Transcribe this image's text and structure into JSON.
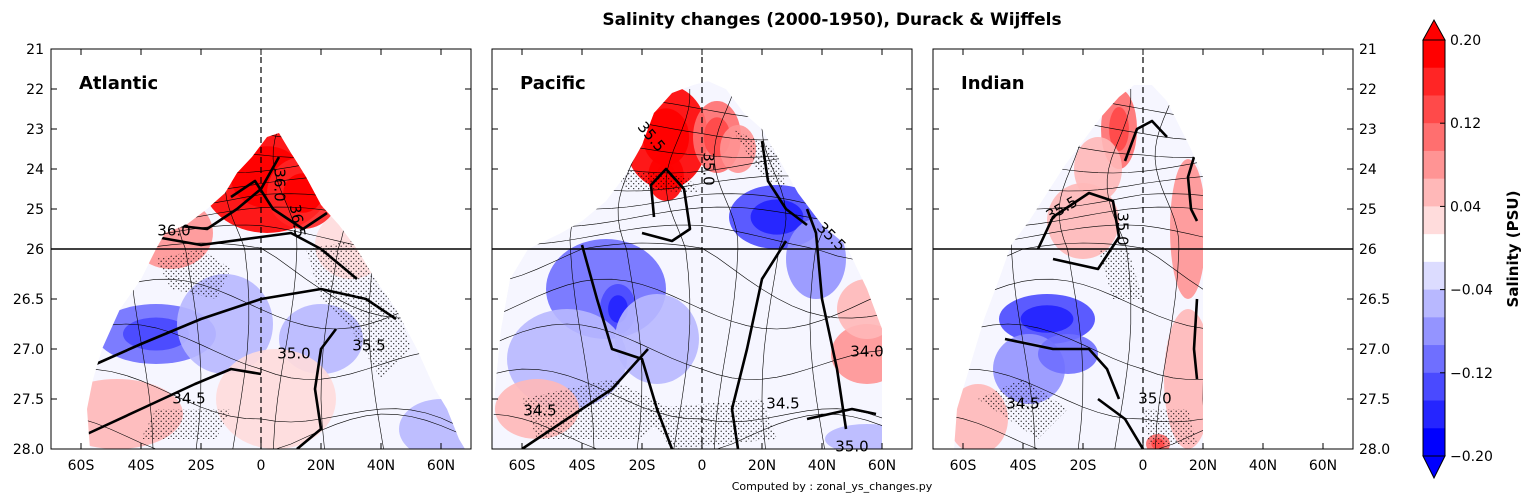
{
  "chart_data": {
    "type": "contour",
    "title": "Salinity changes (2000-1950), Durack & Wijffels",
    "footnote": "Computed by : zonal_ys_changes.py",
    "xaxis": {
      "range": [
        -70,
        70
      ],
      "ticks": [
        -60,
        -40,
        -20,
        0,
        20,
        40,
        60
      ],
      "tick_labels": [
        "60S",
        "40S",
        "20S",
        "0",
        "20N",
        "40N",
        "60N"
      ]
    },
    "yaxis": {
      "inverted": true,
      "split_at": 26,
      "upper_range": [
        21,
        26
      ],
      "lower_range": [
        26,
        28
      ],
      "ticks": [
        21,
        22,
        23,
        24,
        25,
        26,
        26.5,
        27,
        27.5,
        28
      ],
      "tick_labels": [
        "21",
        "22",
        "23",
        "24",
        "25",
        "26",
        "26.5",
        "27.0",
        "27.5",
        "28.0"
      ]
    },
    "colorbar": {
      "label": "Salinity (PSU)",
      "range": [
        -0.2,
        0.2
      ],
      "tick_values": [
        0.2,
        0.12,
        0.04,
        -0.04,
        -0.12,
        -0.2
      ],
      "tick_labels": [
        "0.20",
        "0.12",
        "0.04",
        "−0.04",
        "−0.12",
        "−0.20"
      ],
      "colors": [
        "#ff0000",
        "#ff2525",
        "#ff4a4a",
        "#ff6f6f",
        "#ff9494",
        "#ffb8b8",
        "#ffdcdc",
        "#ffffff",
        "#dcdcff",
        "#b8b8ff",
        "#9494ff",
        "#6f6fff",
        "#4a4aff",
        "#2525ff",
        "#0000ff"
      ]
    },
    "panels": [
      {
        "name": "Atlantic",
        "contour_labels": [
          {
            "text": "36.0",
            "x": -29,
            "y": 25.55
          },
          {
            "text": "36.0",
            "x": 6,
            "y": 24.4,
            "rot": 90
          },
          {
            "text": "36.5",
            "x": 12,
            "y": 25.3,
            "rot": 80
          },
          {
            "text": "35.0",
            "x": 11,
            "y": 27.05
          },
          {
            "text": "35.5",
            "x": 36,
            "y": 26.97
          },
          {
            "text": "34.5",
            "x": -24,
            "y": 27.5
          }
        ],
        "anomalies": [
          {
            "x": 2,
            "y": 24.2,
            "rx": 22,
            "ry": 1.4,
            "v": 0.2
          },
          {
            "x": 14,
            "y": 24.6,
            "rx": 12,
            "ry": 0.9,
            "v": 0.16
          },
          {
            "x": -30,
            "y": 25.6,
            "rx": 14,
            "ry": 0.6,
            "v": 0.1
          },
          {
            "x": -35,
            "y": 26.85,
            "rx": 20,
            "ry": 0.3,
            "v": -0.12
          },
          {
            "x": -12,
            "y": 26.75,
            "rx": 16,
            "ry": 0.5,
            "v": -0.06
          },
          {
            "x": 20,
            "y": 26.9,
            "rx": 14,
            "ry": 0.35,
            "v": -0.05
          },
          {
            "x": -48,
            "y": 27.65,
            "rx": 22,
            "ry": 0.35,
            "v": 0.06
          },
          {
            "x": 5,
            "y": 27.5,
            "rx": 20,
            "ry": 0.5,
            "v": 0.04
          },
          {
            "x": 60,
            "y": 27.8,
            "rx": 14,
            "ry": 0.3,
            "v": -0.07
          },
          {
            "x": 30,
            "y": 25.9,
            "rx": 12,
            "ry": 0.4,
            "v": 0.04
          }
        ],
        "thick_contours": [
          [
            [
              -58,
              27.85
            ],
            [
              -40,
              27.6
            ],
            [
              -22,
              27.35
            ],
            [
              -10,
              27.2
            ],
            [
              0,
              27.25
            ]
          ],
          [
            [
              -55,
              27.15
            ],
            [
              -40,
              26.95
            ],
            [
              -20,
              26.7
            ],
            [
              0,
              26.5
            ],
            [
              20,
              26.4
            ],
            [
              35,
              26.5
            ],
            [
              45,
              26.7
            ]
          ],
          [
            [
              -35,
              25.7
            ],
            [
              -20,
              25.9
            ],
            [
              0,
              25.7
            ],
            [
              10,
              25.6
            ],
            [
              20,
              26.0
            ],
            [
              32,
              26.3
            ]
          ],
          [
            [
              -30,
              25.4
            ],
            [
              -18,
              25.5
            ],
            [
              -8,
              25.0
            ],
            [
              0,
              24.5
            ],
            [
              6,
              23.7
            ]
          ],
          [
            [
              12,
              28.0
            ],
            [
              20,
              27.8
            ],
            [
              18,
              27.4
            ],
            [
              20,
              27.0
            ],
            [
              25,
              26.8
            ]
          ],
          [
            [
              -10,
              24.7
            ],
            [
              -2,
              24.3
            ],
            [
              4,
              25.0
            ],
            [
              14,
              25.5
            ],
            [
              22,
              25.1
            ]
          ]
        ]
      },
      {
        "name": "Pacific",
        "contour_labels": [
          {
            "text": "35.5",
            "x": -17,
            "y": 23.2,
            "rot": 50
          },
          {
            "text": "35.0",
            "x": 2,
            "y": 24.0,
            "rot": 90
          },
          {
            "text": "35.5",
            "x": 43,
            "y": 25.7,
            "rot": 45
          },
          {
            "text": "34.0",
            "x": 55,
            "y": 27.03
          },
          {
            "text": "34.5",
            "x": 27,
            "y": 27.55
          },
          {
            "text": "34.5",
            "x": -54,
            "y": 27.62
          },
          {
            "text": "35.0",
            "x": 50,
            "y": 27.98
          }
        ],
        "anomalies": [
          {
            "x": -12,
            "y": 23.2,
            "rx": 14,
            "ry": 1.3,
            "v": 0.2
          },
          {
            "x": -12,
            "y": 24.2,
            "rx": 6,
            "ry": 0.6,
            "v": 0.2
          },
          {
            "x": 5,
            "y": 23.2,
            "rx": 8,
            "ry": 0.9,
            "v": 0.12
          },
          {
            "x": 25,
            "y": 25.2,
            "rx": 16,
            "ry": 0.8,
            "v": -0.14
          },
          {
            "x": 12,
            "y": 23.5,
            "rx": 6,
            "ry": 0.6,
            "v": 0.08
          },
          {
            "x": 38,
            "y": 26.1,
            "rx": 10,
            "ry": 0.4,
            "v": -0.08
          },
          {
            "x": -32,
            "y": 26.4,
            "rx": 20,
            "ry": 0.5,
            "v": -0.1
          },
          {
            "x": -28,
            "y": 26.6,
            "rx": 6,
            "ry": 0.25,
            "v": -0.14
          },
          {
            "x": -45,
            "y": 27.1,
            "rx": 20,
            "ry": 0.5,
            "v": -0.06
          },
          {
            "x": -15,
            "y": 26.9,
            "rx": 14,
            "ry": 0.45,
            "v": -0.05
          },
          {
            "x": 55,
            "y": 27.05,
            "rx": 12,
            "ry": 0.3,
            "v": 0.08
          },
          {
            "x": 55,
            "y": 26.6,
            "rx": 10,
            "ry": 0.3,
            "v": 0.05
          },
          {
            "x": -55,
            "y": 27.6,
            "rx": 14,
            "ry": 0.3,
            "v": 0.05
          },
          {
            "x": 55,
            "y": 27.9,
            "rx": 14,
            "ry": 0.15,
            "v": -0.06
          }
        ],
        "thick_contours": [
          [
            [
              -40,
              25.9
            ],
            [
              -35,
              26.5
            ],
            [
              -30,
              27.0
            ],
            [
              -20,
              27.1
            ],
            [
              -15,
              27.6
            ],
            [
              -10,
              28.0
            ]
          ],
          [
            [
              -60,
              28.0
            ],
            [
              -45,
              27.7
            ],
            [
              -30,
              27.4
            ],
            [
              -18,
              27.0
            ]
          ],
          [
            [
              -20,
              25.6
            ],
            [
              -10,
              25.8
            ],
            [
              -4,
              25.5
            ],
            [
              -6,
              24.5
            ],
            [
              -12,
              24.0
            ],
            [
              -17,
              24.4
            ],
            [
              -16,
              25.2
            ]
          ],
          [
            [
              28,
              25.8
            ],
            [
              20,
              26.3
            ],
            [
              15,
              27.0
            ],
            [
              10,
              27.6
            ],
            [
              12,
              28.0
            ]
          ],
          [
            [
              35,
              25.0
            ],
            [
              38,
              25.6
            ],
            [
              40,
              26.5
            ],
            [
              45,
              27.2
            ],
            [
              48,
              27.8
            ]
          ],
          [
            [
              20,
              23.3
            ],
            [
              22,
              24.3
            ],
            [
              28,
              25.0
            ],
            [
              35,
              25.4
            ]
          ],
          [
            [
              35,
              27.7
            ],
            [
              50,
              27.6
            ],
            [
              58,
              27.65
            ]
          ]
        ]
      },
      {
        "name": "Indian",
        "contour_labels": [
          {
            "text": "35.5",
            "x": -27,
            "y": 25.0,
            "rot": -30
          },
          {
            "text": "35.0",
            "x": -7,
            "y": 25.5,
            "rot": 90
          },
          {
            "text": "35.0",
            "x": 4,
            "y": 27.5
          },
          {
            "text": "34.5",
            "x": -40,
            "y": 27.55
          }
        ],
        "anomalies": [
          {
            "x": -8,
            "y": 23.0,
            "rx": 6,
            "ry": 1.0,
            "v": 0.12
          },
          {
            "x": -20,
            "y": 25.3,
            "rx": 12,
            "ry": 0.8,
            "v": 0.06
          },
          {
            "x": -15,
            "y": 24.0,
            "rx": 8,
            "ry": 0.8,
            "v": 0.05
          },
          {
            "x": -32,
            "y": 26.7,
            "rx": 16,
            "ry": 0.25,
            "v": -0.14
          },
          {
            "x": -38,
            "y": 27.2,
            "rx": 12,
            "ry": 0.35,
            "v": -0.08
          },
          {
            "x": -25,
            "y": 27.05,
            "rx": 10,
            "ry": 0.2,
            "v": -0.1
          },
          {
            "x": -55,
            "y": 27.7,
            "rx": 10,
            "ry": 0.35,
            "v": 0.07
          },
          {
            "x": 15,
            "y": 27.3,
            "rx": 8,
            "ry": 0.7,
            "v": 0.05
          },
          {
            "x": 15,
            "y": 25.5,
            "rx": 6,
            "ry": 1.0,
            "v": 0.08
          },
          {
            "x": 5,
            "y": 27.95,
            "rx": 4,
            "ry": 0.1,
            "v": 0.12
          }
        ],
        "thick_contours": [
          [
            [
              -30,
              26.1
            ],
            [
              -15,
              26.2
            ],
            [
              -8,
              25.7
            ],
            [
              -10,
              24.8
            ],
            [
              -18,
              24.6
            ],
            [
              -30,
              25.2
            ],
            [
              -35,
              26.0
            ]
          ],
          [
            [
              -46,
              26.9
            ],
            [
              -30,
              27.0
            ],
            [
              -18,
              27.0
            ],
            [
              -12,
              27.2
            ],
            [
              -8,
              27.5
            ]
          ],
          [
            [
              -6,
              23.8
            ],
            [
              -2,
              23.0
            ],
            [
              3,
              22.8
            ],
            [
              8,
              23.2
            ]
          ],
          [
            [
              18,
              25.3
            ],
            [
              16,
              25.0
            ],
            [
              15,
              24.2
            ],
            [
              17,
              23.7
            ]
          ],
          [
            [
              18,
              26.5
            ],
            [
              17,
              27.0
            ],
            [
              18,
              27.3
            ]
          ],
          [
            [
              -15,
              27.5
            ],
            [
              -6,
              27.7
            ],
            [
              0,
              28.0
            ]
          ]
        ]
      }
    ]
  }
}
